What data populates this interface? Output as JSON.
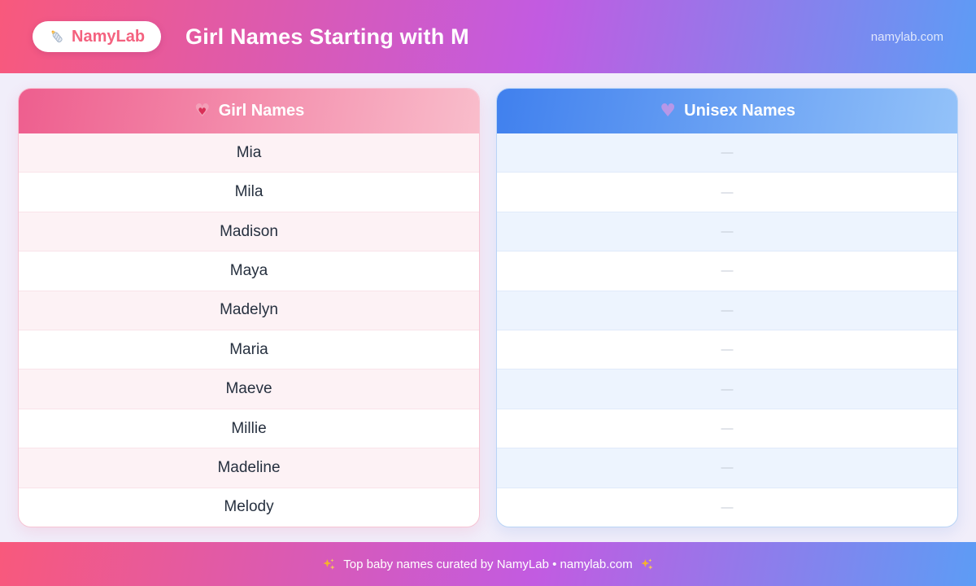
{
  "colors": {
    "page_bg": "#f1eefa",
    "banner_gradient": [
      "#f8597c",
      "#c25be1",
      "#5d9cf5"
    ],
    "logo_text": "#f4627f",
    "girl_header_gradient": [
      "#ee5e8e",
      "#f9bdcb"
    ],
    "unisex_header_gradient": [
      "#4080ee",
      "#93c2f9"
    ],
    "girl_row_tint": "#fdf2f5",
    "unisex_row_tint": "#edf4fe",
    "name_text": "#26303f",
    "dash_text": "#c3cad4"
  },
  "header": {
    "logo_icon": "baby-bottle-icon",
    "logo_text": "NamyLab",
    "title": "Girl Names Starting with M",
    "site": "namylab.com"
  },
  "girl_card": {
    "icon": "pink-heart-icon",
    "title": "Girl Names",
    "names": [
      "Mia",
      "Mila",
      "Madison",
      "Maya",
      "Madelyn",
      "Maria",
      "Maeve",
      "Millie",
      "Madeline",
      "Melody"
    ]
  },
  "unisex_card": {
    "icon": "purple-heart-icon",
    "title": "Unisex Names",
    "rows": [
      "—",
      "—",
      "—",
      "—",
      "—",
      "—",
      "—",
      "—",
      "—",
      "—"
    ]
  },
  "footer": {
    "icon": "sparkles-icon",
    "text": "Top baby names curated by NamyLab • namylab.com"
  }
}
